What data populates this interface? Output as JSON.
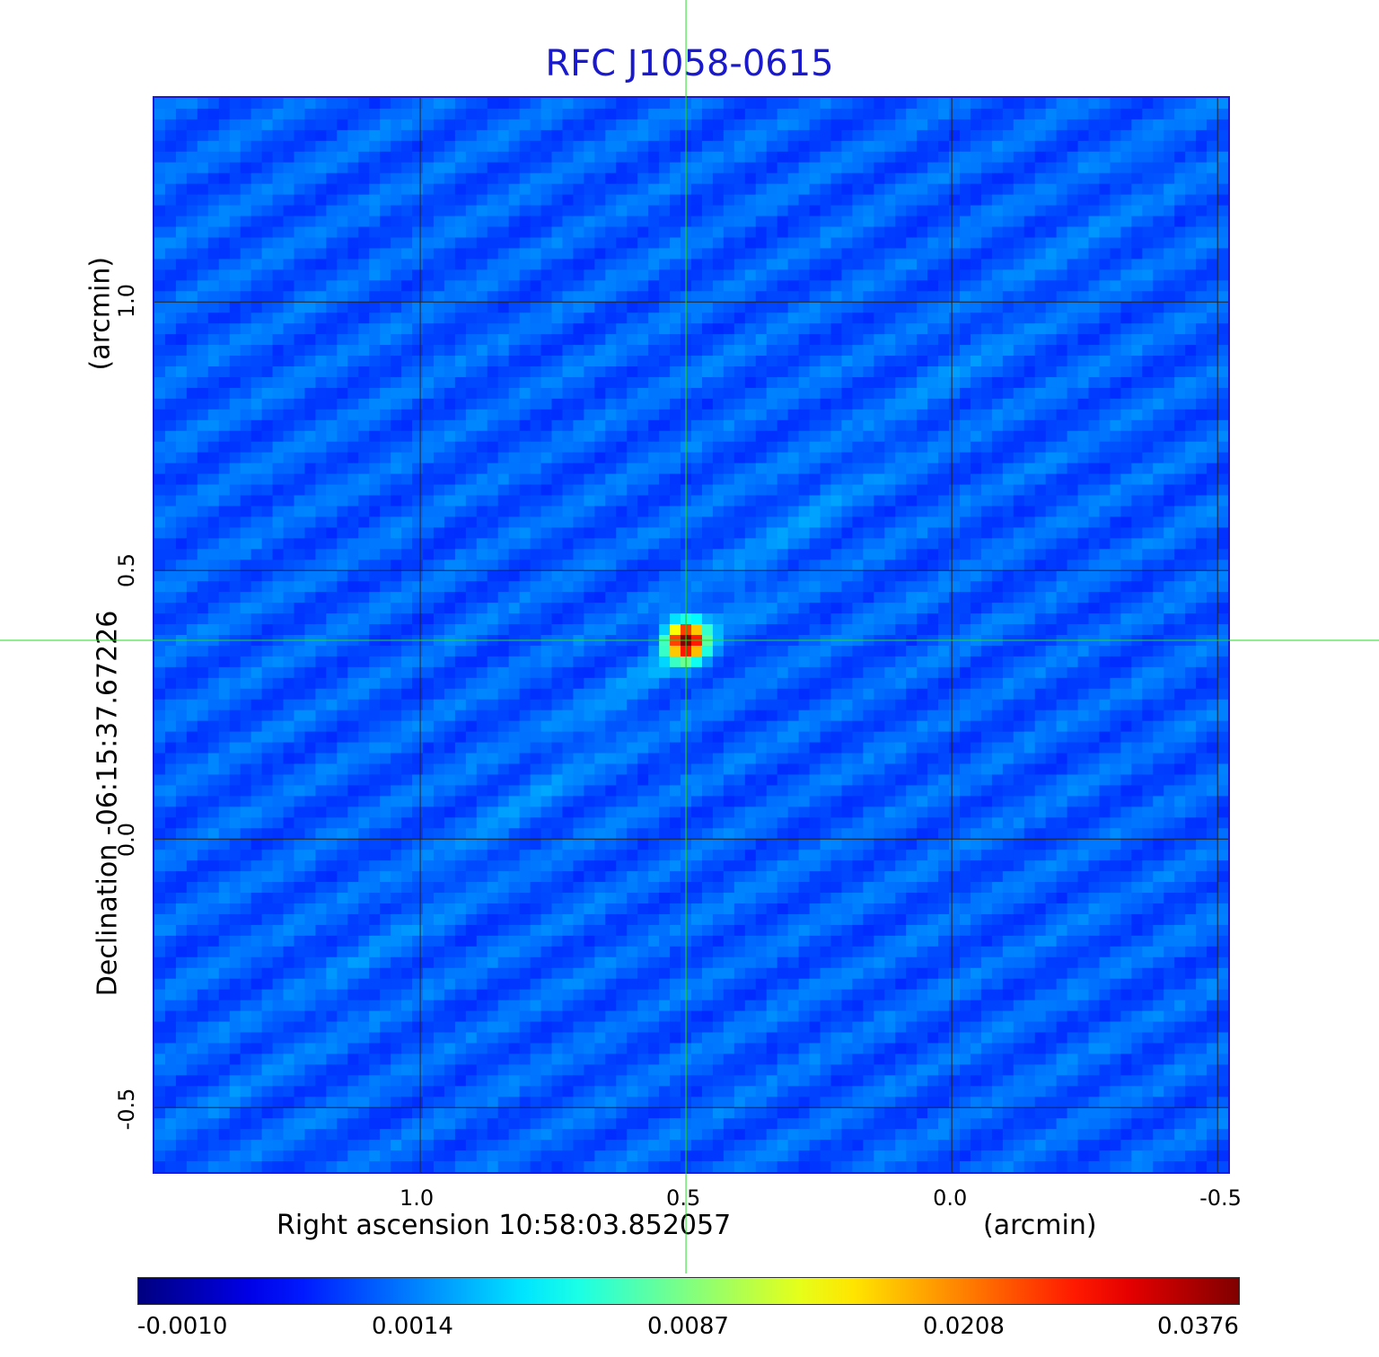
{
  "chart_data": {
    "type": "heatmap",
    "title": "RFC J1058-0615",
    "xlabel": "Right ascension  10:58:03.852057",
    "xunit": "(arcmin)",
    "ylabel": "Declination  -06:15:37.67226",
    "yunit": "(arcmin)",
    "xlim": [
      1.5,
      -0.52
    ],
    "ylim": [
      -0.62,
      1.38
    ],
    "xticks": [
      "1.0",
      "0.5",
      "0.0",
      "-0.5"
    ],
    "xtick_values": [
      1.0,
      0.5,
      0.0,
      -0.5
    ],
    "yticks": [
      "1.0",
      "0.5",
      "0.0",
      "-0.5"
    ],
    "ytick_values": [
      1.0,
      0.5,
      0.0,
      -0.5
    ],
    "grid": true,
    "colormap": "jet",
    "colorbar_ticks": [
      "-0.0010",
      "0.0014",
      "0.0087",
      "0.0208",
      "0.0376"
    ],
    "source_peak": {
      "x": 0.5,
      "y": 0.37,
      "value": 0.0376
    },
    "crosshair": {
      "x": 0.5,
      "y": 0.37,
      "color": "#22dd22"
    }
  }
}
